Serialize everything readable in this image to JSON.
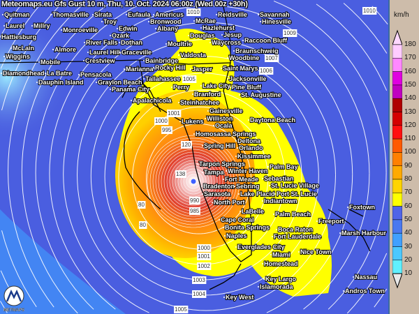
{
  "title": "Meteomaps.eu Gfs Gust 10 m, Thu, 10. Oct. 2024 06:00z (Wed 00z +30h)",
  "legend": {
    "unit": "km/h",
    "ticks": [
      "180",
      "170",
      "160",
      "150",
      "140",
      "130",
      "120",
      "110",
      "100",
      "90",
      "80",
      "70",
      "60",
      "50",
      "40",
      "30",
      "20",
      "10"
    ],
    "colors": [
      "#ffccff",
      "#ff88ff",
      "#e000e0",
      "#c000c0",
      "#b00000",
      "#d40000",
      "#ff1010",
      "#ff5a00",
      "#ff8000",
      "#ffaa00",
      "#ffd400",
      "#ffff00",
      "#5064e8",
      "#4a78f0",
      "#40a0ff",
      "#4cc8ff",
      "#60f0ff"
    ],
    "over_color": "#ffd8ff",
    "under_color": "#e8e8e8"
  },
  "map": {
    "sea_color": "#4a5ee0",
    "gust_zone_color": "#ffff00",
    "storm_core_color": "#ff8c00",
    "cities": [
      "Quitman",
      "Thomasville",
      "Sirata",
      "Eufaula",
      "Americus",
      "McRae",
      "Reidsville",
      "Savannah",
      "Troy",
      "Bronwood",
      "Hazlehurst",
      "Hinesville",
      "Laurel",
      "Millry",
      "Monroeville",
      "Edwin",
      "Albany",
      "Douglas",
      "Jesup",
      "Raccoon Bluff",
      "Hattiesburg",
      "Ozark",
      "River Falls",
      "Dothan",
      "Moultrie",
      "Waycross",
      "Braunschweig",
      "McLain",
      "Almore",
      "Laurel Hill",
      "Graceville",
      "Bainbridge",
      "Valdosta",
      "Woodbine",
      "Wiggins",
      "Mobile",
      "Crestview",
      "Marianna",
      "Rocky Hill",
      "Saint Marys",
      "Tallahassee",
      "Jasper",
      "Jacksonville",
      "Diamondhead",
      "La Batre",
      "Pensacola",
      "Dauphin Island",
      "Graylon Beach",
      "Panama City",
      "Perry",
      "Lake City",
      "Pine Bluff",
      "Branford",
      "St. Augustine",
      "Apalachicola",
      "Steinhatchee",
      "Gainesville",
      "Williston",
      "Lukens",
      "Ocala",
      "Daytona Beach",
      "Homosassa Springs",
      "Deltona",
      "Spring Hill",
      "Orlando",
      "Kissimmee",
      "Tarpon Springs",
      "Winter Haven",
      "Palm Bay",
      "Tampa",
      "Fort Meade",
      "Sebastian",
      "Bradenton",
      "Sebring",
      "St. Lucie Village",
      "Sarasota",
      "Lake Placid",
      "Port St. Lucie",
      "North Port",
      "Indiantown",
      "LaBelle",
      "Palm Beach",
      "Foxtown",
      "Cape Coral",
      "Freeport",
      "Marsh Harbour",
      "Bonita Springs",
      "Boca Raton",
      "Naples",
      "Fort Lauderdale",
      "Everglades City",
      "Miami",
      "Nice Town",
      "Homestead",
      "Key Largo",
      "Islamorada",
      "Nassau",
      "Andros Town",
      "Key West"
    ],
    "isobar_labels": [
      "1010",
      "1010",
      "1009",
      "1007",
      "1006",
      "1005",
      "1001",
      "1000",
      "995",
      "990",
      "985",
      "1000",
      "1001",
      "1002",
      "1003",
      "1004",
      "1005"
    ],
    "wind_labels": [
      "80",
      "120",
      "138",
      "80"
    ],
    "logo_text": "METMAPS"
  }
}
